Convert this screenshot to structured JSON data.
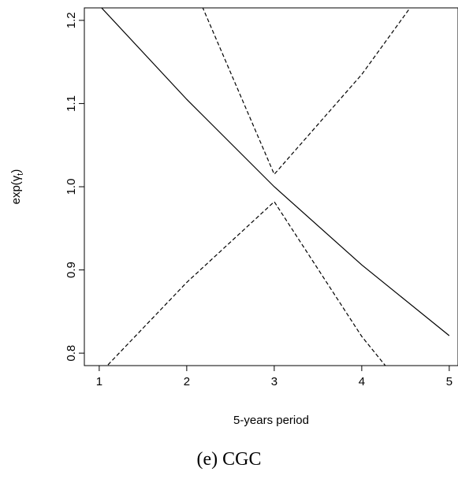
{
  "chart_data": {
    "type": "line",
    "xlabel": "5-years period",
    "ylabel_base": "exp(",
    "ylabel_sym": "γ",
    "ylabel_sub": "t",
    "ylabel_close": ")",
    "xlim": [
      0.83,
      5.1
    ],
    "ylim": [
      0.785,
      1.215
    ],
    "xticks": [
      1,
      2,
      3,
      4,
      5
    ],
    "yticks": [
      0.8,
      0.9,
      1.0,
      1.1,
      1.2
    ],
    "ytick_labels": [
      "0.8",
      "0.9",
      "1.0",
      "1.1",
      "1.2"
    ],
    "grid": false,
    "series": [
      {
        "style": "solid",
        "x": [
          0.78,
          1,
          2,
          3,
          4,
          5
        ],
        "y": [
          1.244,
          1.218,
          1.105,
          1.0,
          0.906,
          0.821
        ]
      },
      {
        "style": "dashed",
        "x": [
          1,
          2,
          3,
          4,
          5
        ],
        "y": [
          0.775,
          0.885,
          0.982,
          0.82,
          0.69
        ]
      },
      {
        "style": "dashed",
        "x": [
          1,
          2,
          3,
          4,
          5
        ],
        "y": [
          1.55,
          1.26,
          1.015,
          1.135,
          1.28
        ]
      }
    ]
  },
  "caption": "(e) CGC"
}
